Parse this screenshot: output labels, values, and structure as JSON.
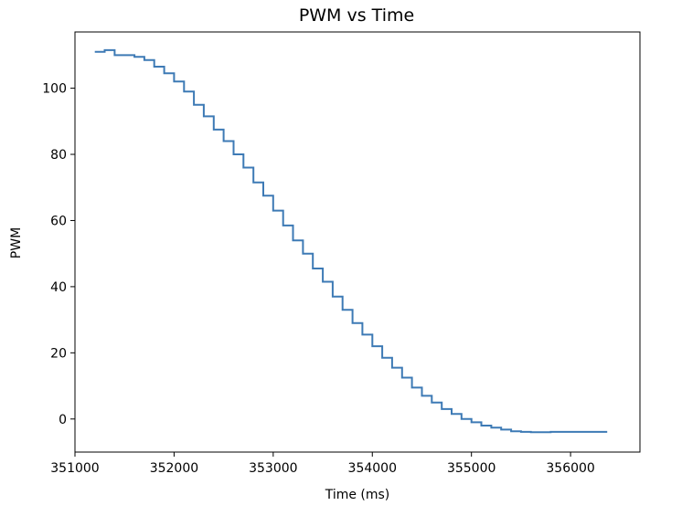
{
  "chart_data": {
    "type": "line",
    "title": "PWM vs Time",
    "xlabel": "Time (ms)",
    "ylabel": "PWM",
    "xlim": [
      351000,
      356700
    ],
    "ylim": [
      -10,
      117
    ],
    "xticks": [
      351000,
      352000,
      353000,
      354000,
      355000,
      356000
    ],
    "yticks": [
      0,
      20,
      40,
      60,
      80,
      100
    ],
    "xtick_labels": [
      "351000",
      "352000",
      "353000",
      "354000",
      "355000",
      "356000"
    ],
    "ytick_labels": [
      "0",
      "20",
      "40",
      "60",
      "80",
      "100"
    ],
    "grid": false,
    "legend": "none",
    "line_color": "#3d7ab5",
    "series": [
      {
        "step": "post",
        "x": [
          351200,
          351300,
          351400,
          351600,
          351700,
          351800,
          351900,
          352000,
          352100,
          352200,
          352300,
          352400,
          352500,
          352600,
          352700,
          352800,
          352900,
          353000,
          353100,
          353200,
          353300,
          353400,
          353500,
          353600,
          353700,
          353800,
          353900,
          354000,
          354100,
          354200,
          354300,
          354400,
          354500,
          354600,
          354700,
          354800,
          354900,
          355000,
          355100,
          355200,
          355300,
          355400,
          355500,
          355600,
          355700,
          355800,
          356000,
          356200,
          356370
        ],
        "y": [
          111,
          111.5,
          110,
          109.5,
          108.5,
          106.5,
          104.5,
          102,
          99,
          95,
          91.5,
          87.5,
          84,
          80,
          76,
          71.5,
          67.5,
          63,
          58.5,
          54,
          50,
          45.5,
          41.5,
          37,
          33,
          29,
          25.5,
          22,
          18.5,
          15.5,
          12.5,
          9.5,
          7,
          5,
          3,
          1.5,
          0,
          -1,
          -2,
          -2.6,
          -3.2,
          -3.7,
          -3.9,
          -4,
          -4,
          -3.9,
          -3.9,
          -3.9,
          -3.9
        ]
      }
    ]
  }
}
